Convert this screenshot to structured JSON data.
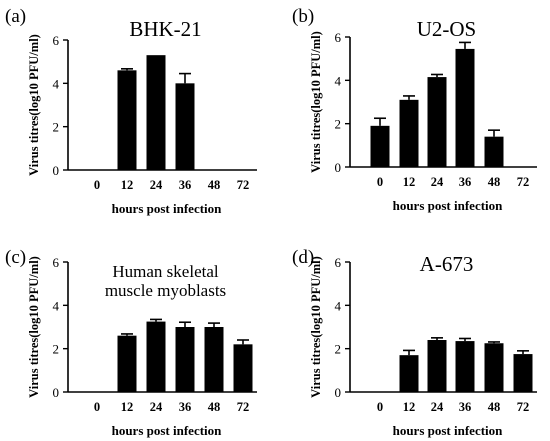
{
  "chart_data": [
    {
      "panel_label": "(a)",
      "type": "bar",
      "title": "BHK-21",
      "xlabel": "hours post infection",
      "ylabel": "Virus titres(log10 PFU/ml)",
      "categories": [
        "0",
        "12",
        "24",
        "36",
        "48",
        "72"
      ],
      "values": [
        0,
        4.6,
        5.3,
        4.0,
        0,
        0
      ],
      "errors": [
        0,
        0.07,
        0,
        0.45,
        0,
        0
      ],
      "ylim": [
        0,
        6
      ],
      "yticks": [
        "0",
        "2",
        "4",
        "6"
      ],
      "grid": false,
      "bar_color": "#000000"
    },
    {
      "panel_label": "(b)",
      "type": "bar",
      "title": "U2-OS",
      "xlabel": "hours post infection",
      "ylabel": "Virus titres(log10 PFU/ml)",
      "categories": [
        "0",
        "12",
        "24",
        "36",
        "48",
        "72"
      ],
      "values": [
        1.9,
        3.1,
        4.15,
        5.45,
        1.4,
        0
      ],
      "errors": [
        0.35,
        0.18,
        0.12,
        0.3,
        0.3,
        0
      ],
      "ylim": [
        0,
        6
      ],
      "yticks": [
        "0",
        "2",
        "4",
        "6"
      ],
      "grid": false,
      "bar_color": "#000000"
    },
    {
      "panel_label": "(c)",
      "type": "bar",
      "title": "Human skeletal",
      "subtitle": "muscle myoblasts",
      "xlabel": "hours post infection",
      "ylabel": "Virus titres(log10 PFU/ml)",
      "categories": [
        "0",
        "12",
        "24",
        "36",
        "48",
        "72"
      ],
      "values": [
        0,
        2.6,
        3.25,
        3.0,
        3.0,
        2.2
      ],
      "errors": [
        0,
        0.08,
        0.1,
        0.22,
        0.18,
        0.2
      ],
      "ylim": [
        0,
        6
      ],
      "yticks": [
        "0",
        "2",
        "4",
        "6"
      ],
      "grid": false,
      "bar_color": "#000000"
    },
    {
      "panel_label": "(d)",
      "type": "bar",
      "title": "A-673",
      "xlabel": "hours post infection",
      "ylabel": "Virus titres(log10 PFU/ml)",
      "categories": [
        "0",
        "12",
        "24",
        "36",
        "48",
        "72"
      ],
      "values": [
        0,
        1.7,
        2.4,
        2.35,
        2.25,
        1.75
      ],
      "errors": [
        0,
        0.22,
        0.1,
        0.12,
        0.06,
        0.15
      ],
      "ylim": [
        0,
        6
      ],
      "yticks": [
        "0",
        "2",
        "4",
        "6"
      ],
      "grid": false,
      "bar_color": "#000000"
    }
  ]
}
